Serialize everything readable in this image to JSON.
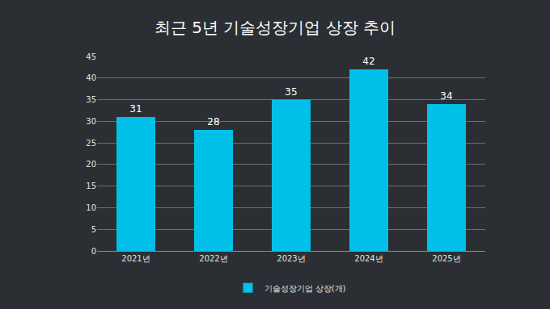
{
  "chart_data": {
    "type": "bar",
    "title": "최근 5년 기술성장기업 상장 추이",
    "categories": [
      "2021년",
      "2022년",
      "2023년",
      "2024년",
      "2025년"
    ],
    "series": [
      {
        "name": "기술성장기업 상장(개)",
        "color": "#00c0e8",
        "values": [
          31,
          28,
          35,
          42,
          34
        ]
      }
    ],
    "ylim": [
      0,
      45
    ],
    "yticks": [
      0,
      5,
      10,
      15,
      20,
      25,
      30,
      35,
      40,
      45
    ],
    "grid": true,
    "data_labels": true,
    "legend": "bottom"
  }
}
